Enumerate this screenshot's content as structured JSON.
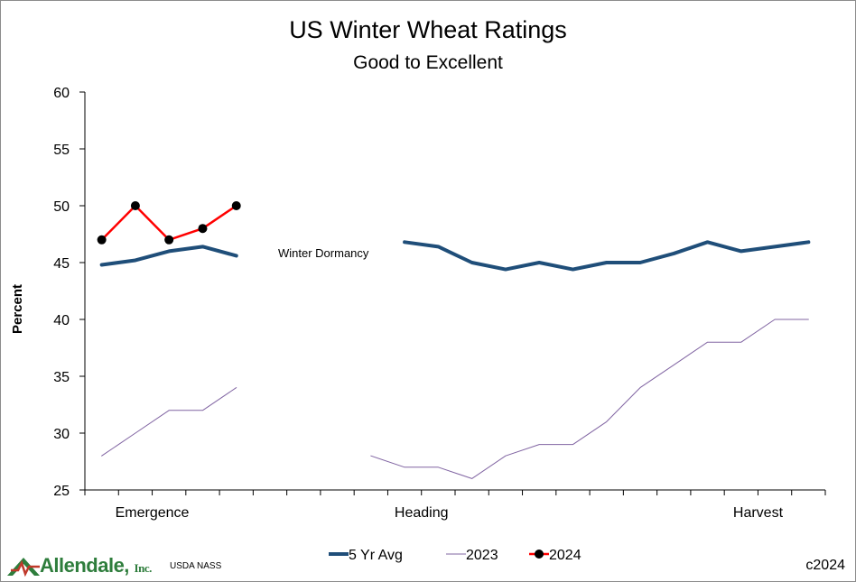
{
  "chart_data": {
    "type": "line",
    "title": "US Winter Wheat Ratings",
    "subtitle": "Good to Excellent",
    "xlabel": "",
    "ylabel": "Percent",
    "ylim": [
      25,
      60
    ],
    "yticks": [
      25,
      30,
      35,
      40,
      45,
      50,
      55,
      60
    ],
    "category_labels": [
      {
        "label": "Emergence",
        "at": 2
      },
      {
        "label": "Heading",
        "at": 10
      },
      {
        "label": "Harvest",
        "at": 20
      }
    ],
    "n_slots": 22,
    "annotation": "Winter Dormancy",
    "legend_position": "bottom",
    "grid": false,
    "series": [
      {
        "name": "5 Yr Avg",
        "color": "#1f4e79",
        "style": "thick",
        "values": [
          44.8,
          45.2,
          46.0,
          46.4,
          45.6,
          null,
          null,
          null,
          null,
          46.8,
          46.4,
          45.0,
          44.4,
          45.0,
          44.4,
          45.0,
          45.0,
          45.8,
          46.8,
          46.0,
          46.4,
          46.8
        ]
      },
      {
        "name": "2023",
        "color": "#8064a2",
        "style": "thin",
        "values": [
          28,
          30,
          32,
          32,
          34,
          null,
          null,
          null,
          28,
          27,
          27,
          26,
          28,
          29,
          29,
          31,
          34,
          36,
          38,
          38,
          40,
          40
        ]
      },
      {
        "name": "2024",
        "color": "#ff0000",
        "marker_color": "#000000",
        "style": "markers",
        "values": [
          47,
          50,
          47,
          48,
          50,
          null,
          null,
          null,
          null,
          null,
          null,
          null,
          null,
          null,
          null,
          null,
          null,
          null,
          null,
          null,
          null,
          null
        ]
      }
    ]
  },
  "footer": {
    "logo_text": "Allendale,",
    "logo_inc": "Inc.",
    "source": "USDA NASS",
    "copyright": "c2024"
  }
}
